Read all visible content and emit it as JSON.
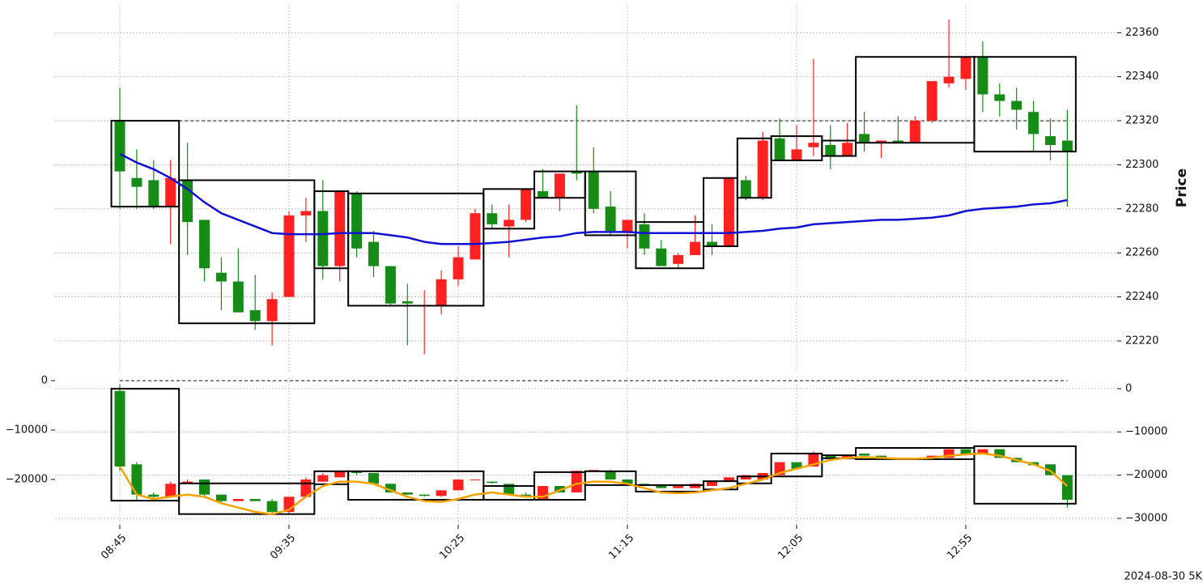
{
  "footer": "2024-08-30 5K",
  "chart_data": [
    {
      "type": "candlestick",
      "ylabel": "Price",
      "open": [
        22320,
        22294,
        22293,
        22281,
        22293,
        22275,
        22251,
        22247,
        22234,
        22229,
        22240,
        22277,
        22279,
        22254,
        22287,
        22265,
        22254,
        22238,
        22236,
        22236,
        22248,
        22257,
        22278,
        22272,
        22275,
        22288,
        22285,
        22297,
        22297,
        22281,
        22269,
        22273,
        22262,
        22255,
        22259,
        22265,
        22263,
        22293,
        22285,
        22312,
        22302,
        22308,
        22309,
        22304,
        22314,
        22310,
        22311,
        22310,
        22320,
        22337,
        22339,
        22349,
        22332,
        22329,
        22324,
        22313,
        22311
      ],
      "high": [
        22335,
        22307,
        22302,
        22302,
        22310,
        22275,
        22258,
        22262,
        22250,
        22242,
        22279,
        22285,
        22293,
        22288,
        22288,
        22270,
        22254,
        22246,
        22243,
        22252,
        22263,
        22280,
        22282,
        22282,
        22289,
        22298,
        22296,
        22327,
        22308,
        22288,
        22275,
        22278,
        22266,
        22260,
        22277,
        22273,
        22294,
        22295,
        22315,
        22321,
        22318,
        22348,
        22318,
        22319,
        22324,
        22311,
        22322,
        22322,
        22338,
        22366,
        22349,
        22356,
        22337,
        22335,
        22329,
        22321,
        22325
      ],
      "low": [
        22280,
        22280,
        22280,
        22264,
        22259,
        22247,
        22234,
        22233,
        22225,
        22218,
        22240,
        22265,
        22248,
        22247,
        22258,
        22249,
        22236,
        22218,
        22214,
        22232,
        22245,
        22257,
        22271,
        22258,
        22274,
        22285,
        22279,
        22293,
        22278,
        22268,
        22262,
        22259,
        22254,
        22253,
        22259,
        22259,
        22263,
        22284,
        22284,
        22302,
        22302,
        22304,
        22298,
        22304,
        22306,
        22303,
        22310,
        22310,
        22319,
        22335,
        22334,
        22324,
        22322,
        22316,
        22306,
        22302,
        22281
      ],
      "close": [
        22297,
        22290,
        22281,
        22294,
        22274,
        22253,
        22247,
        22233,
        22229,
        22239,
        22277,
        22279,
        22254,
        22288,
        22262,
        22254,
        22237,
        22237,
        22236,
        22248,
        22258,
        22278,
        22273,
        22275,
        22289,
        22285,
        22296,
        22296,
        22280,
        22270,
        22275,
        22262,
        22254,
        22259,
        22265,
        22263,
        22294,
        22285,
        22311,
        22302,
        22307,
        22310,
        22304,
        22310,
        22310,
        22311,
        22310,
        22320,
        22338,
        22340,
        22349,
        22332,
        22329,
        22325,
        22314,
        22309,
        22306
      ],
      "up_color": "#ff2020",
      "down_color": "#168c16",
      "lines": [
        {
          "color": "#1111d6",
          "values": [
            22305,
            22301,
            22298,
            22294,
            22289,
            22283,
            22278,
            22275,
            22272,
            22269,
            22268.5,
            22268.5,
            22268.5,
            22269,
            22269,
            22269,
            22268,
            22267,
            22265,
            22264,
            22264,
            22264,
            22264.5,
            22265,
            22266,
            22267,
            22267.5,
            22269,
            22269.5,
            22269.5,
            22269.5,
            22269,
            22269,
            22269,
            22269,
            22269,
            22269,
            22269.5,
            22270,
            22271,
            22271.5,
            22273,
            22273.5,
            22274,
            22274.5,
            22275,
            22275,
            22275.5,
            22276,
            22277,
            22279,
            22280,
            22280.5,
            22281,
            22282,
            22282.5,
            22284
          ]
        }
      ],
      "boxes": {
        "start": [
          0,
          4,
          12,
          14,
          22,
          25,
          28,
          31,
          35,
          37,
          39,
          42,
          44,
          51
        ],
        "end": [
          3,
          11,
          13,
          21,
          24,
          27,
          30,
          34,
          36,
          38,
          41,
          43,
          50,
          56
        ],
        "low": [
          22281,
          22228,
          22253,
          22236,
          22271,
          22285,
          22268,
          22253,
          22263,
          22285,
          22302,
          22304,
          22310,
          22306
        ],
        "high": [
          22320,
          22293,
          22288,
          22287,
          22289,
          22297,
          22297,
          22274,
          22294,
          22312,
          22313,
          22311,
          22349,
          22349
        ]
      },
      "reference_line": {
        "value": 22320
      },
      "ylim": [
        22206,
        22373
      ],
      "yticks": [
        22220,
        22240,
        22260,
        22280,
        22300,
        22320,
        22340,
        22360
      ],
      "grid": true
    },
    {
      "type": "candlestick",
      "categories": [
        "08:45",
        null,
        null,
        null,
        null,
        null,
        null,
        null,
        null,
        null,
        "09:35",
        null,
        null,
        null,
        null,
        null,
        null,
        null,
        null,
        null,
        "10:25",
        null,
        null,
        null,
        null,
        null,
        null,
        null,
        null,
        null,
        "11:15",
        null,
        null,
        null,
        null,
        null,
        null,
        null,
        null,
        null,
        "12:05",
        null,
        null,
        null,
        null,
        null,
        null,
        null,
        null,
        null,
        "12:55",
        null,
        null,
        null,
        null,
        null,
        null
      ],
      "open": [
        -500,
        -17500,
        -24500,
        -25000,
        -22000,
        -21000,
        -24500,
        -26000,
        -25500,
        -26000,
        -28500,
        -25000,
        -21500,
        -20500,
        -19000,
        -19500,
        -22000,
        -24000,
        -24500,
        -24800,
        -23500,
        -21200,
        -21500,
        -22000,
        -24500,
        -25500,
        -22500,
        -24000,
        -19000,
        -19000,
        -21000,
        -22000,
        -22500,
        -23000,
        -23000,
        -22500,
        -21500,
        -21000,
        -21000,
        -20000,
        -17000,
        -18000,
        -15500,
        -16000,
        -15000,
        -15500,
        -16000,
        -16200,
        -16000,
        -16000,
        -14000,
        -15200,
        -14000,
        -16000,
        -17000,
        -17500,
        -20000
      ],
      "high": [
        1000,
        -17000,
        -24000,
        -21500,
        -21000,
        -21000,
        -24500,
        -25500,
        -25500,
        -25500,
        -25000,
        -20500,
        -19500,
        -19000,
        -19000,
        -19500,
        -22000,
        -24000,
        -24500,
        -23500,
        -21000,
        -21000,
        -21500,
        -22000,
        -24000,
        -22500,
        -22500,
        -19000,
        -18800,
        -18800,
        -21000,
        -22000,
        -22500,
        -22500,
        -22000,
        -21500,
        -20500,
        -20000,
        -19500,
        -17000,
        -17000,
        -14500,
        -15500,
        -15200,
        -15000,
        -15500,
        -16000,
        -16000,
        -15500,
        -14000,
        -14000,
        -14000,
        -14000,
        -16000,
        -17000,
        -17500,
        -20000
      ],
      "low": [
        -19000,
        -26000,
        -25500,
        -25000,
        -22000,
        -25000,
        -26500,
        -26000,
        -26000,
        -29000,
        -29000,
        -25000,
        -21500,
        -20500,
        -20000,
        -22000,
        -24000,
        -24500,
        -25000,
        -25000,
        -23500,
        -21200,
        -22000,
        -24500,
        -25000,
        -25500,
        -24000,
        -24000,
        -19000,
        -21000,
        -22000,
        -22500,
        -23000,
        -23000,
        -23000,
        -22500,
        -21500,
        -21000,
        -21000,
        -20000,
        -18500,
        -18000,
        -16000,
        -16000,
        -15500,
        -16000,
        -16200,
        -16200,
        -16000,
        -16000,
        -15200,
        -15200,
        -16000,
        -17000,
        -17700,
        -20000,
        -27500
      ],
      "close": [
        -18000,
        -24500,
        -25000,
        -22000,
        -21500,
        -24500,
        -26000,
        -25500,
        -26000,
        -28500,
        -25000,
        -21000,
        -20000,
        -19000,
        -19500,
        -22000,
        -24000,
        -24500,
        -24800,
        -23500,
        -21000,
        -21000,
        -21800,
        -24500,
        -25000,
        -22500,
        -24000,
        -19000,
        -18800,
        -21000,
        -22000,
        -22500,
        -23000,
        -22500,
        -22000,
        -21500,
        -20500,
        -20000,
        -19500,
        -17000,
        -18500,
        -15000,
        -16000,
        -15200,
        -15500,
        -16000,
        -16200,
        -16000,
        -15500,
        -14000,
        -15200,
        -14000,
        -16000,
        -17000,
        -17700,
        -20000,
        -25700
      ],
      "up_color": "#ff2020",
      "down_color": "#168c16",
      "lines": [
        {
          "color": "#f5a300",
          "values": [
            -18000,
            -24500,
            -25500,
            -25000,
            -24500,
            -25000,
            -26500,
            -27500,
            -28500,
            -29000,
            -28000,
            -25000,
            -22500,
            -21500,
            -21500,
            -22000,
            -23500,
            -25000,
            -26000,
            -26200,
            -25500,
            -24500,
            -24000,
            -24500,
            -25000,
            -25000,
            -23500,
            -22000,
            -21500,
            -21500,
            -22000,
            -23000,
            -24000,
            -24200,
            -24000,
            -23500,
            -23000,
            -22000,
            -21000,
            -19500,
            -18500,
            -17500,
            -16500,
            -16000,
            -15800,
            -16000,
            -16200,
            -16200,
            -16000,
            -15500,
            -15200,
            -15000,
            -15500,
            -16500,
            -17500,
            -19000,
            -22500
          ]
        }
      ],
      "boxes": {
        "start": [
          0,
          4,
          12,
          14,
          22,
          25,
          28,
          31,
          35,
          37,
          39,
          42,
          44,
          51
        ],
        "end": [
          3,
          11,
          13,
          21,
          24,
          27,
          30,
          34,
          36,
          38,
          41,
          43,
          50,
          56
        ],
        "low": [
          -25900,
          -29000,
          -22100,
          -25700,
          -25700,
          -25700,
          -22300,
          -23800,
          -23300,
          -21900,
          -20300,
          -16100,
          -16300,
          -26600
        ],
        "high": [
          0,
          -21900,
          -19100,
          -19100,
          -22500,
          -19300,
          -19100,
          -22300,
          -21400,
          -20300,
          -15000,
          -15400,
          -13700,
          -13300
        ]
      },
      "reference_line": {
        "value": 0,
        "axis": "y2"
      },
      "ylim": [
        -31500,
        2600
      ],
      "yticks": [
        0,
        {
          "value": -10000,
          "label": "−10000"
        },
        {
          "value": -20000,
          "label": "−20000"
        },
        {
          "value": -30000,
          "label": "−30000"
        }
      ],
      "y2lim": [
        -29200,
        650
      ],
      "y2ticks": [
        0,
        {
          "value": -10000,
          "label": "−10000"
        },
        {
          "value": -20000,
          "label": "−20000"
        }
      ],
      "grid": true
    }
  ]
}
